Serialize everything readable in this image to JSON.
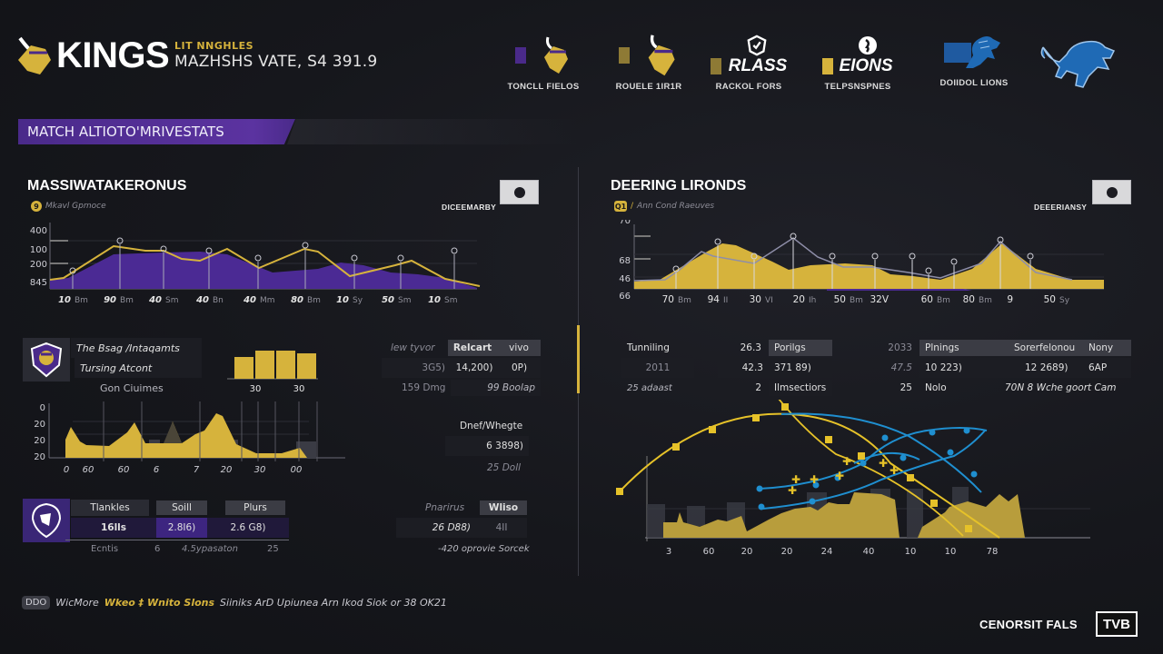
{
  "header": {
    "brand_name": "KINGS",
    "subtitle_top": "LIT NNGHLES",
    "subtitle_main": "MAZHSHS VATE, S4 391.9",
    "teams": [
      {
        "label": "TONCLL FIELOS",
        "swatch": "#4a2a8a",
        "logo": "viking-helmet-icon"
      },
      {
        "label": "ROUELE 1IR1R",
        "swatch": "#8e7a35",
        "logo": "viking-helmet-icon"
      },
      {
        "label": "RACKOL FORS",
        "swatch": "#8e7a35",
        "wordmark": "RLASS",
        "logo": "shield-check-icon"
      },
      {
        "label": "TELPSNSPNES",
        "swatch": "#d6b33c",
        "wordmark": "EIONS",
        "logo": "circle-logo-icon"
      },
      {
        "label": "DOIIDOL LIONS",
        "swatch": "#1f5aa0",
        "logo": "lion-icon"
      },
      {
        "label": "",
        "swatch": "",
        "logo": "lion-icon"
      }
    ]
  },
  "section": {
    "title": "MATCH ALTIOTO'MRIVESTATS"
  },
  "left_panel": {
    "title": "MASSIWATAKERONUS",
    "subtitle": "Mkavl Gpmoce",
    "badge": "9",
    "mode_label": "DICEEMARBY",
    "chart1": {
      "y_ticks": [
        "400",
        "100",
        "200",
        "845"
      ],
      "x_labels": [
        [
          "10",
          "Bm"
        ],
        [
          "90",
          "Bm"
        ],
        [
          "40",
          "Sm"
        ],
        [
          "40",
          "Bn"
        ],
        [
          "40",
          "Mm"
        ],
        [
          "80",
          "Bm"
        ],
        [
          "10",
          "Sy"
        ],
        [
          "50",
          "Sm"
        ],
        [
          "10",
          "Sm"
        ]
      ]
    },
    "player_card": {
      "line1": "The Bsag /Intaqamts",
      "line2": "Tursing Atcont",
      "caption": "Gon Ciuimes"
    },
    "mini_bars": {
      "labels": [
        "30",
        "30"
      ]
    },
    "stats_table": {
      "header_label": "lew tyvor",
      "headers": [
        "Relcart",
        "vivo"
      ],
      "row1": [
        "3G5)",
        "14,200)",
        "0P)"
      ],
      "row2": [
        "159 Dmg",
        "99 Boolap"
      ]
    },
    "chart2": {
      "y_ticks": [
        "0",
        "20",
        "20",
        "20"
      ],
      "x_labels": [
        "0",
        "60",
        "60",
        "6",
        "7",
        "20",
        "30",
        "00"
      ]
    },
    "side_stat": {
      "label": "Dnef/Whegte",
      "value": "6 3898)",
      "caption": "25 Doll"
    },
    "tackles_table": {
      "headers": [
        "Tlankles",
        "Soill",
        "Plurs"
      ],
      "values": [
        "16lls",
        "2.8I6)",
        "2.6 G8)"
      ],
      "footer": [
        "Ecntis",
        "6",
        "4.5ypasaton",
        "25"
      ]
    },
    "practice_table": {
      "headers": [
        "Pnarirus",
        "Wliso"
      ],
      "values": [
        "26 D88)",
        "4II"
      ],
      "caption": "-420 oprovie Sorcek"
    }
  },
  "right_panel": {
    "title": "DEERING LIRONDS",
    "subtitle": "Ann Cond Raeuves",
    "badge": "Q1",
    "mode_label": "DEEERIANSY",
    "chart1": {
      "y_ticks": [
        "70",
        "68",
        "46",
        "66"
      ],
      "x_labels": [
        [
          "70",
          "Bm"
        ],
        [
          "94",
          "II"
        ],
        [
          "30",
          "VI"
        ],
        [
          "20",
          "Ih"
        ],
        [
          "50",
          "Bm"
        ],
        [
          "32V",
          ""
        ],
        [
          "60",
          "Bm"
        ],
        [
          "80",
          "Bm"
        ],
        [
          "9",
          ""
        ],
        [
          "50",
          "Sy"
        ]
      ]
    },
    "table_a": {
      "label": "Tunniling",
      "row_vals": [
        "2011",
        "25 adaast"
      ],
      "col2": [
        "26.3",
        "42.3",
        "2"
      ],
      "header": "Porilgs",
      "col3": [
        "371 89)",
        "Ilmsectiors"
      ]
    },
    "table_b": {
      "col1": [
        "2033",
        "47.5",
        "25"
      ],
      "headers": [
        "Plnings",
        "Sorerfelonou",
        "Nony"
      ],
      "row1": [
        "10 223)",
        "12 2689)",
        "6AP"
      ],
      "row2": [
        "Nolo",
        "70N 8 Wche goort Cam"
      ]
    },
    "chart2": {
      "x_labels": [
        "3",
        "60",
        "20",
        "20",
        "24",
        "40",
        "10",
        "10",
        "78"
      ]
    }
  },
  "footer": {
    "tag": "DDO",
    "prefix": "WicMore",
    "highlight": "Wkeo ‡ Wnito Slons",
    "rest": "Siiniks ArD Upiunea Arn Ikod Siok or 38 OK21",
    "broadcaster": "CENORSIT FALS",
    "network": "TVB"
  },
  "colors": {
    "purple": "#4a2a8a",
    "gold": "#d6b33c",
    "blue": "#1f8fd0",
    "background": "#16171c"
  }
}
